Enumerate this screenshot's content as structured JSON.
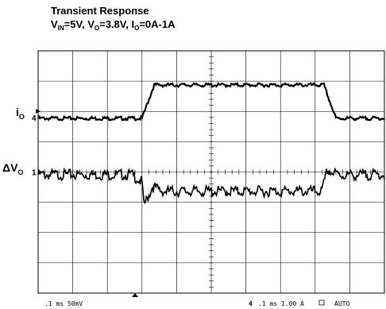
{
  "title_line1": "Transient Response",
  "title_line2": {
    "v": "V",
    "v_sub": "IN",
    "v_val": "=5V, ",
    "vo": "V",
    "vo_sub": "O",
    "vo_val": "=3.8V, ",
    "io": "I",
    "io_sub": "O",
    "io_val": "=0A-1A"
  },
  "footer": {
    "left": ".1 ms 50mV",
    "right_ch": "4",
    "right": ".1 ms 1.00 A",
    "mode": "AUTO"
  },
  "chart_data": {
    "type": "line",
    "title": "Transient Response",
    "grid": true,
    "series": [
      {
        "name": "iO",
        "label": "i",
        "label_sub": "O",
        "channel_marker": "4",
        "x_div": [
          0,
          3.0,
          3.35,
          8.25,
          8.6,
          10
        ],
        "y_div": [
          5.8,
          5.8,
          6.9,
          6.9,
          5.8,
          5.8
        ]
      },
      {
        "name": "ΔVO",
        "label": "ΔV",
        "label_sub": "O",
        "channel_marker": "1",
        "x_div": [
          0,
          2.7,
          3.0,
          3.05,
          3.15,
          3.3,
          3.6,
          8.2,
          8.35,
          8.5,
          8.8,
          10
        ],
        "y_div": [
          4.0,
          4.0,
          3.75,
          3.0,
          3.2,
          3.6,
          3.45,
          3.45,
          4.15,
          4.05,
          3.98,
          4.0
        ]
      }
    ]
  }
}
